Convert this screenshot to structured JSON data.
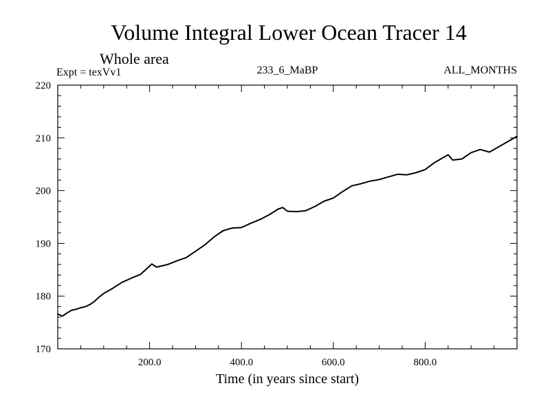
{
  "chart_data": {
    "type": "line",
    "title": "Volume Integral Lower Ocean Tracer 14",
    "subtitle": "Whole area",
    "experiment_label": "Expt = texVv1",
    "run_label": "233_6_MaBP",
    "period_label": "ALL_MONTHS",
    "xlabel": "Time (in years since start)",
    "ylabel": "",
    "xlim": [
      0,
      1000
    ],
    "ylim": [
      170,
      220
    ],
    "xticks": [
      200,
      400,
      600,
      800
    ],
    "xtick_labels": [
      "200.0",
      "400.0",
      "600.0",
      "800.0"
    ],
    "yticks": [
      170,
      180,
      190,
      200,
      210,
      220
    ],
    "ytick_labels": [
      "170",
      "180",
      "190",
      "200",
      "210",
      "220"
    ],
    "grid": false,
    "series": [
      {
        "name": "Tracer 14",
        "color": "#000000",
        "x": [
          0,
          10,
          20,
          30,
          40,
          50,
          60,
          70,
          80,
          90,
          100,
          120,
          140,
          160,
          180,
          195,
          205,
          215,
          240,
          260,
          280,
          300,
          320,
          340,
          360,
          380,
          400,
          420,
          440,
          460,
          480,
          490,
          500,
          520,
          540,
          560,
          580,
          600,
          620,
          640,
          660,
          680,
          700,
          720,
          740,
          760,
          780,
          800,
          820,
          840,
          850,
          860,
          880,
          900,
          920,
          940,
          960,
          980,
          1000
        ],
        "values": [
          176.6,
          176.2,
          176.8,
          177.3,
          177.5,
          177.8,
          178.0,
          178.4,
          179.0,
          179.8,
          180.5,
          181.5,
          182.6,
          183.4,
          184.1,
          185.3,
          186.1,
          185.5,
          186.0,
          186.7,
          187.3,
          188.5,
          189.7,
          191.2,
          192.4,
          192.9,
          193.0,
          193.8,
          194.5,
          195.4,
          196.5,
          196.8,
          196.1,
          196.0,
          196.2,
          197.0,
          198.0,
          198.6,
          199.8,
          200.9,
          201.3,
          201.8,
          202.1,
          202.6,
          203.1,
          203.0,
          203.4,
          204.0,
          205.3,
          206.3,
          206.8,
          205.8,
          206.0,
          207.2,
          207.8,
          207.3,
          208.3,
          209.3,
          210.3
        ]
      }
    ]
  }
}
